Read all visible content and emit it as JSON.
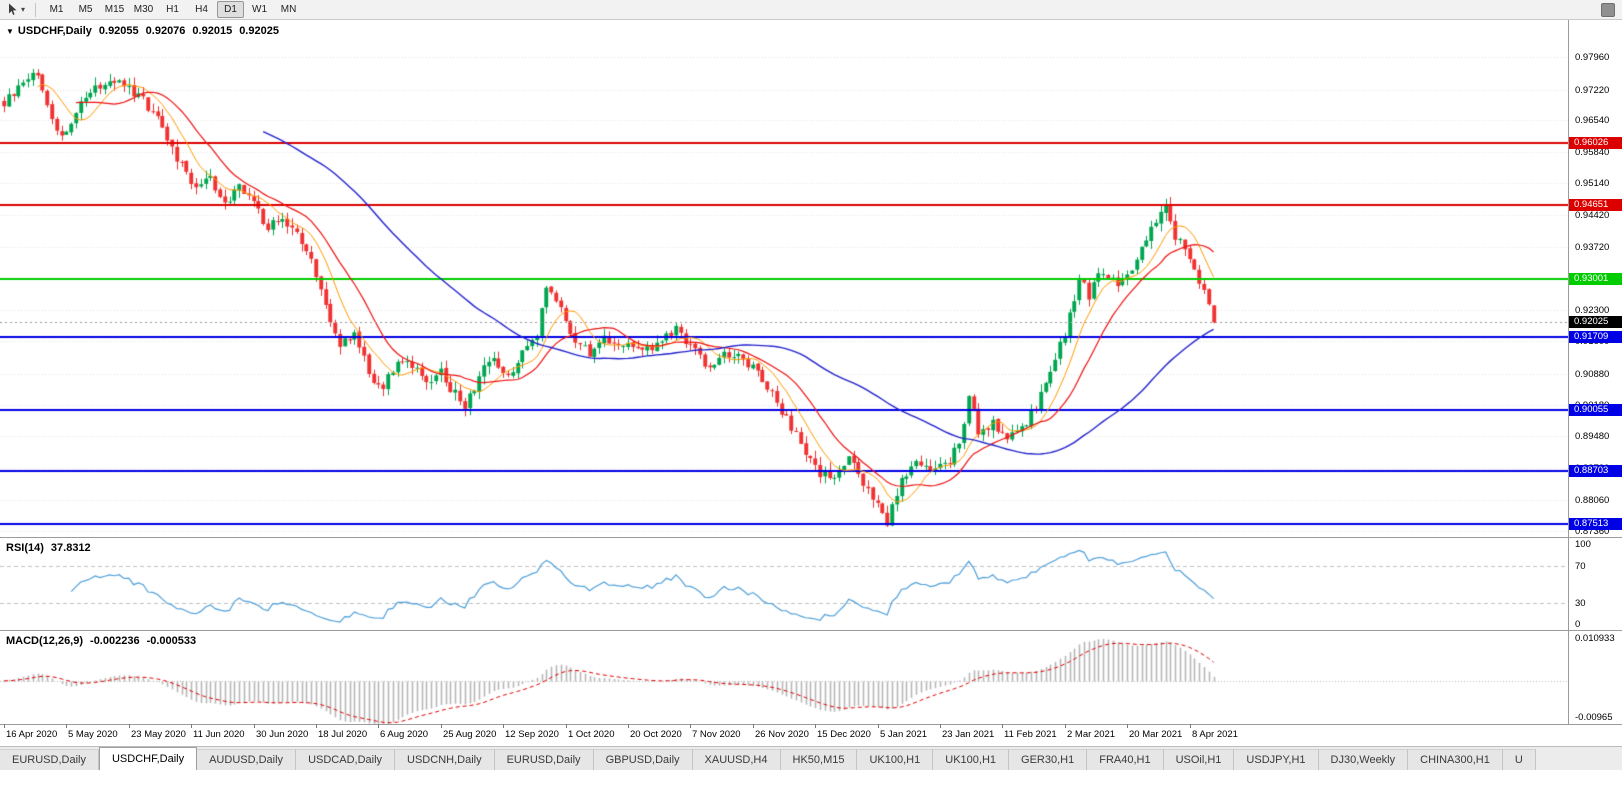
{
  "toolbar": {
    "timeframes": [
      "M1",
      "M5",
      "M15",
      "M30",
      "H1",
      "H4",
      "D1",
      "W1",
      "MN"
    ],
    "active_timeframe": "D1"
  },
  "icons": {
    "symbol_menu": "▼",
    "tool_caret": "▾"
  },
  "main_chart": {
    "title_symbol": "USDCHF,Daily",
    "ohlc": {
      "open": "0.92055",
      "high": "0.92076",
      "low": "0.92015",
      "close": "0.92025"
    },
    "current_price": "0.92025"
  },
  "rsi_panel": {
    "title": "RSI(14)",
    "value": "37.8312",
    "axis_labels": [
      "100",
      "70",
      "30",
      "0"
    ],
    "upper_level": 70,
    "lower_level": 30
  },
  "macd_panel": {
    "title": "MACD(12,26,9)",
    "macd_value": "-0.002236",
    "signal_value": "-0.000533",
    "axis_max_label": "0.010933",
    "axis_min_label": "-0.00965"
  },
  "tabs": [
    {
      "label": "EURUSD,Daily",
      "active": false
    },
    {
      "label": "USDCHF,Daily",
      "active": true
    },
    {
      "label": "AUDUSD,Daily",
      "active": false
    },
    {
      "label": "USDCAD,Daily",
      "active": false
    },
    {
      "label": "USDCNH,Daily",
      "active": false
    },
    {
      "label": "EURUSD,Daily",
      "active": false
    },
    {
      "label": "GBPUSD,Daily",
      "active": false
    },
    {
      "label": "XAUUSD,H4",
      "active": false
    },
    {
      "label": "HK50,M15",
      "active": false
    },
    {
      "label": "UK100,H1",
      "active": false
    },
    {
      "label": "UK100,H1",
      "active": false
    },
    {
      "label": "GER30,H1",
      "active": false
    },
    {
      "label": "FRA40,H1",
      "active": false
    },
    {
      "label": "USOil,H1",
      "active": false
    },
    {
      "label": "USDJPY,H1",
      "active": false
    },
    {
      "label": "DJ30,Weekly",
      "active": false
    },
    {
      "label": "CHINA300,H1",
      "active": false
    },
    {
      "label": "U",
      "active": false
    }
  ],
  "colors": {
    "candle_up": "#00a650",
    "candle_down": "#f03232",
    "ma_fast": "#ff9900",
    "ma_medium": "#ee1111",
    "ma_slow": "#2222cc",
    "rsi_line": "#4f9fd8",
    "macd_histogram": "#b6b6b6",
    "macd_signal": "#dd0000",
    "price_badge_bg": "#000000",
    "level_red": "#dd0000",
    "level_green": "#00cc00",
    "level_blue": "#0000e6"
  },
  "chart_data": {
    "type": "candlestick",
    "symbol": "USDCHF",
    "timeframe": "Daily",
    "ohlc_current": {
      "open": 0.92055,
      "high": 0.92076,
      "low": 0.92015,
      "close": 0.92025
    },
    "current_price": 0.92025,
    "candle_count": 253,
    "y_axis_ticks": [
      "0.97960",
      "0.97220",
      "0.96540",
      "0.95840",
      "0.95140",
      "0.94420",
      "0.93720",
      "0.93000",
      "0.92300",
      "0.91600",
      "0.90880",
      "0.90180",
      "0.89480",
      "0.88780",
      "0.88060",
      "0.87360"
    ],
    "x_axis_labels": [
      "16 Apr 2020",
      "5 May 2020",
      "23 May 2020",
      "11 Jun 2020",
      "30 Jun 2020",
      "18 Jul 2020",
      "6 Aug 2020",
      "25 Aug 2020",
      "12 Sep 2020",
      "1 Oct 2020",
      "20 Oct 2020",
      "7 Nov 2020",
      "26 Nov 2020",
      "15 Dec 2020",
      "5 Jan 2021",
      "23 Jan 2021",
      "11 Feb 2021",
      "2 Mar 2021",
      "20 Mar 2021",
      "8 Apr 2021"
    ],
    "candles_per_x_label": 13,
    "horizontal_levels": [
      {
        "price": 0.96026,
        "label": "0.96026",
        "color": "#dd0000"
      },
      {
        "price": 0.94651,
        "label": "0.94651",
        "color": "#dd0000"
      },
      {
        "price": 0.93001,
        "label": "0.93001",
        "color": "#00cc00"
      },
      {
        "price": 0.91709,
        "label": "0.91709",
        "color": "#0000e6"
      },
      {
        "price": 0.90055,
        "label": "0.90055",
        "color": "#0000e6"
      },
      {
        "price": 0.88703,
        "label": "0.88703",
        "color": "#0000e6"
      },
      {
        "price": 0.87513,
        "label": "0.87513",
        "color": "#0000e6"
      }
    ],
    "close_path_anchors": [
      [
        0,
        0.969
      ],
      [
        3,
        0.9735
      ],
      [
        6,
        0.9765
      ],
      [
        9,
        0.97
      ],
      [
        11,
        0.962
      ],
      [
        13,
        0.964
      ],
      [
        16,
        0.969
      ],
      [
        19,
        0.9725
      ],
      [
        22,
        0.974
      ],
      [
        25,
        0.9735
      ],
      [
        28,
        0.971
      ],
      [
        31,
        0.967
      ],
      [
        34,
        0.962
      ],
      [
        37,
        0.955
      ],
      [
        40,
        0.95
      ],
      [
        43,
        0.9525
      ],
      [
        46,
        0.9465
      ],
      [
        49,
        0.9505
      ],
      [
        52,
        0.947
      ],
      [
        55,
        0.9415
      ],
      [
        58,
        0.944
      ],
      [
        61,
        0.9405
      ],
      [
        64,
        0.935
      ],
      [
        67,
        0.924
      ],
      [
        70,
        0.915
      ],
      [
        73,
        0.918
      ],
      [
        76,
        0.909
      ],
      [
        79,
        0.905
      ],
      [
        82,
        0.9125
      ],
      [
        85,
        0.9105
      ],
      [
        88,
        0.906
      ],
      [
        91,
        0.909
      ],
      [
        94,
        0.904
      ],
      [
        96,
        0.9012
      ],
      [
        99,
        0.9085
      ],
      [
        102,
        0.9125
      ],
      [
        105,
        0.908
      ],
      [
        108,
        0.913
      ],
      [
        111,
        0.918
      ],
      [
        113,
        0.9285
      ],
      [
        116,
        0.9235
      ],
      [
        119,
        0.916
      ],
      [
        122,
        0.913
      ],
      [
        125,
        0.9175
      ],
      [
        128,
        0.915
      ],
      [
        131,
        0.9158
      ],
      [
        134,
        0.914
      ],
      [
        137,
        0.916
      ],
      [
        140,
        0.9188
      ],
      [
        143,
        0.915
      ],
      [
        146,
        0.911
      ],
      [
        149,
        0.9122
      ],
      [
        152,
        0.9135
      ],
      [
        155,
        0.9108
      ],
      [
        158,
        0.9075
      ],
      [
        161,
        0.9025
      ],
      [
        164,
        0.8965
      ],
      [
        167,
        0.8915
      ],
      [
        170,
        0.8868
      ],
      [
        173,
        0.8858
      ],
      [
        176,
        0.8905
      ],
      [
        179,
        0.8838
      ],
      [
        182,
        0.8798
      ],
      [
        184,
        0.8758
      ],
      [
        187,
        0.8848
      ],
      [
        190,
        0.8885
      ],
      [
        193,
        0.8868
      ],
      [
        196,
        0.8885
      ],
      [
        199,
        0.8925
      ],
      [
        201,
        0.904
      ],
      [
        203,
        0.8958
      ],
      [
        206,
        0.8975
      ],
      [
        209,
        0.8942
      ],
      [
        212,
        0.8965
      ],
      [
        215,
        0.9012
      ],
      [
        218,
        0.909
      ],
      [
        221,
        0.918
      ],
      [
        224,
        0.9302
      ],
      [
        226,
        0.9262
      ],
      [
        229,
        0.932
      ],
      [
        232,
        0.9282
      ],
      [
        234,
        0.9302
      ],
      [
        237,
        0.9372
      ],
      [
        240,
        0.9425
      ],
      [
        242,
        0.9455
      ],
      [
        244,
        0.9392
      ],
      [
        246,
        0.9368
      ],
      [
        248,
        0.9312
      ],
      [
        250,
        0.927
      ],
      [
        252,
        0.92025
      ]
    ],
    "moving_averages": [
      {
        "color": "#ff9900",
        "period": 8
      },
      {
        "color": "#ee1111",
        "period": 16
      },
      {
        "color": "#2222cc",
        "period": 55
      }
    ],
    "sub_indicators": [
      {
        "type": "RSI",
        "period": 14,
        "value": 37.8312,
        "levels": [
          70,
          30
        ],
        "range": [
          0,
          100
        ]
      },
      {
        "type": "MACD",
        "fast": 12,
        "slow": 26,
        "signal": 9,
        "macd": -0.002236,
        "signal_value": -0.000533,
        "scale_max": 0.010933,
        "scale_min": -0.00965
      }
    ]
  }
}
